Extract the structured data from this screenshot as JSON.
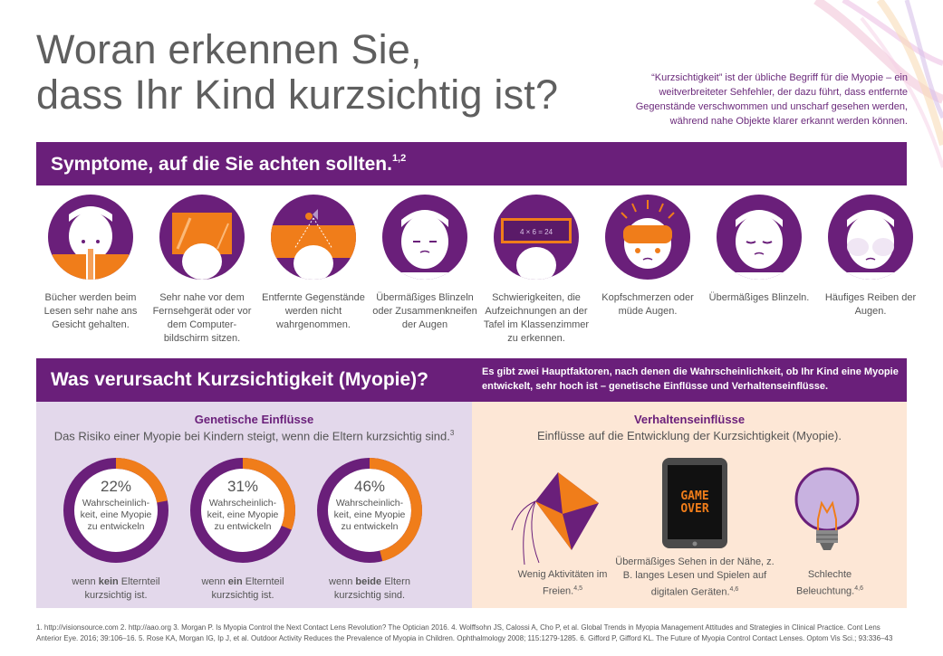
{
  "header": {
    "title_line1": "Woran erkennen Sie,",
    "title_line2": "dass Ihr Kind kurzsichtig ist?",
    "intro": "“Kurzsichtigkeit” ist der übliche Begriff für die Myopie – ein weitverbreiteter Sehfehler, der dazu führt, dass entfernte Gegenstände verschwommen und unscharf gesehen werden, während nahe Objekte klarer erkannt werden können."
  },
  "symptoms": {
    "heading": "Symptome, auf die Sie achten sollten.",
    "heading_ref": "1,2",
    "items": [
      {
        "caption": "Bücher werden beim Lesen sehr nahe ans Gesicht gehalten.",
        "icon": "book-face-icon"
      },
      {
        "caption": "Sehr nahe vor dem Fernsehgerät oder vor dem Computer-bildschirm sitzen.",
        "icon": "tv-screen-icon"
      },
      {
        "caption": "Entfernte Gegenstände werden nicht wahrgenommen.",
        "icon": "distant-object-icon"
      },
      {
        "caption": "Übermäßiges Blinzeln oder Zusammenkneifen der Augen",
        "icon": "squinting-face-icon"
      },
      {
        "caption": "Schwierigkeiten, die Aufzeichnungen an der Tafel im Klassenzimmer zu erkennen.",
        "icon": "blackboard-icon"
      },
      {
        "caption": "Kopfschmerzen oder müde Augen.",
        "icon": "headache-icon"
      },
      {
        "caption": "Übermäßiges Blinzeln.",
        "icon": "blinking-face-icon"
      },
      {
        "caption": "Häufiges Reiben der Augen.",
        "icon": "rubbing-eyes-icon"
      }
    ],
    "blackboard_text": "4 × 6 = 24"
  },
  "causes": {
    "heading": "Was verursacht Kurzsichtigkeit (Myopie)?",
    "sub": "Es gibt zwei Hauptfaktoren, nach denen die Wahrscheinlichkeit, ob Ihr Kind eine Myopie entwickelt, sehr hoch ist – genetische Einflüsse und Verhaltenseinflüsse.",
    "genetic": {
      "title": "Genetische Einflüsse",
      "sub": "Das Risiko einer Myopie bei Kindern steigt, wenn die Eltern kurzsichtig sind.",
      "sub_ref": "3",
      "ring_label": "Wahrscheinlich-keit, eine Myopie zu entwickeln",
      "rings": [
        {
          "pct_label": "22%",
          "value": 22,
          "cap_pre": "wenn ",
          "cap_bold": "kein",
          "cap_post": " Elternteil kurzsichtig ist."
        },
        {
          "pct_label": "31%",
          "value": 31,
          "cap_pre": "wenn ",
          "cap_bold": "ein",
          "cap_post": " Elternteil kurzsichtig ist."
        },
        {
          "pct_label": "46%",
          "value": 46,
          "cap_pre": "wenn ",
          "cap_bold": "beide",
          "cap_post": " Eltern kurzsichtig sind."
        }
      ]
    },
    "behavior": {
      "title": "Verhaltenseinflüsse",
      "sub": "Einflüsse auf die Entwicklung der Kurzsichtigkeit (Myopie).",
      "items": [
        {
          "caption": "Wenig Aktivitäten im Freien.",
          "ref": "4,5",
          "icon": "kite-icon"
        },
        {
          "caption": "Übermäßiges Sehen in der Nähe, z. B. langes Lesen und Spielen auf digitalen Geräten.",
          "ref": "4,6",
          "icon": "tablet-icon"
        },
        {
          "caption": "Schlechte Beleuchtung.",
          "ref": "4,6",
          "icon": "lightbulb-icon"
        }
      ],
      "tablet_line1": "GAME",
      "tablet_line2": "OVER"
    }
  },
  "references": "1. http://visionsource.com 2. http://aao.org 3. Morgan P. Is Myopia Control the Next Contact Lens Revolution? The Optician 2016. 4. Wolffsohn JS, Calossi A, Cho P, et al. Global Trends in Myopia Management Attitudes and Strategies in Clinical Practice. Cont Lens Anterior Eye. 2016; 39:106–16. 5. Rose KA, Morgan IG, Ip J, et al. Outdoor Activity Reduces the Prevalence of Myopia in Children. Ophthalmology 2008; 115:1279-1285. 6. Gifford P, Gifford KL. The Future of Myopia Control Contact Lenses. Optom Vis Sci.; 93:336–43",
  "colors": {
    "purple": "#6a1f7a",
    "orange": "#f07d1a",
    "lavender": "#e3d8eb",
    "peach": "#fde7d6"
  }
}
